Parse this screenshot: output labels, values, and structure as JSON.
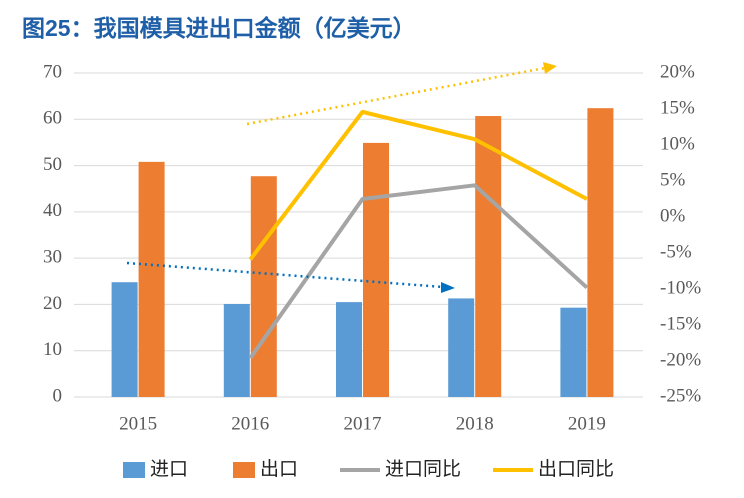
{
  "chart_data": {
    "type": "bar-line",
    "title": "图25：我国模具进出口金额（亿美元）",
    "categories": [
      "2015",
      "2016",
      "2017",
      "2018",
      "2019"
    ],
    "series": [
      {
        "name": "进口",
        "type": "bar",
        "color": "#5b9bd5",
        "values": [
          24.8,
          20.1,
          20.5,
          21.3,
          19.3
        ]
      },
      {
        "name": "出口",
        "type": "bar",
        "color": "#ed7d31",
        "values": [
          50.8,
          47.7,
          54.9,
          60.7,
          62.4
        ]
      },
      {
        "name": "进口同比",
        "type": "line",
        "axis": "y2",
        "color": "#a5a5a5",
        "values": [
          null,
          -19.6,
          2.5,
          4.4,
          -9.8
        ]
      },
      {
        "name": "出口同比",
        "type": "line",
        "axis": "y2",
        "color": "#ffc000",
        "values": [
          null,
          -5.9,
          14.6,
          10.8,
          2.5
        ]
      }
    ],
    "ylim": [
      0,
      70
    ],
    "yticks": [
      0,
      10,
      20,
      30,
      40,
      50,
      60,
      70
    ],
    "y2lim": [
      -25,
      20
    ],
    "y2ticks": [
      {
        "value": -25,
        "label": "-25%"
      },
      {
        "value": -20,
        "label": "-20%"
      },
      {
        "value": -15,
        "label": "-15%"
      },
      {
        "value": -10,
        "label": "-10%"
      },
      {
        "value": -5,
        "label": "-5%"
      },
      {
        "value": 0,
        "label": "0%"
      },
      {
        "value": 5,
        "label": "5%"
      },
      {
        "value": 10,
        "label": "10%"
      },
      {
        "value": 15,
        "label": "15%"
      },
      {
        "value": 20,
        "label": "20%"
      }
    ],
    "grid": true
  }
}
